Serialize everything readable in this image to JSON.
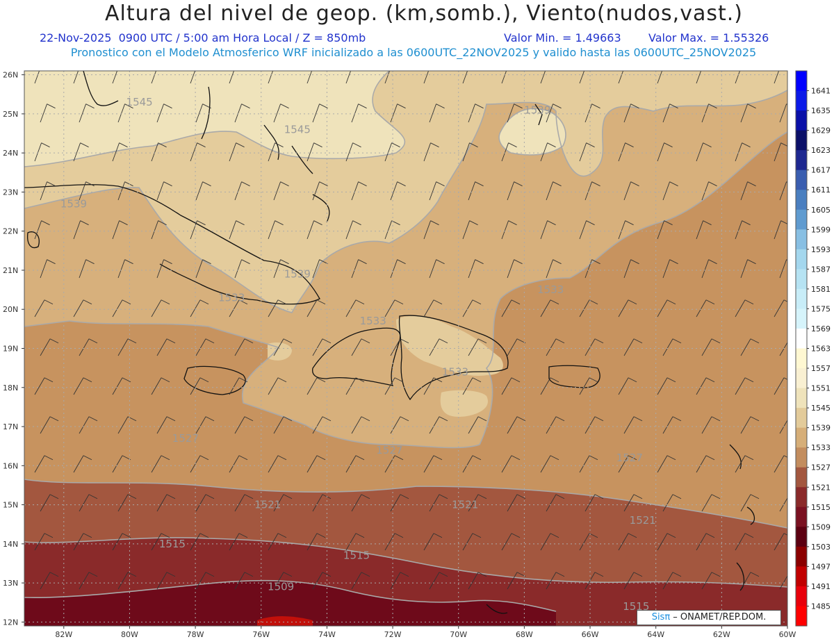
{
  "header": {
    "title": "Altura del nivel de geop. (km,somb.), Viento(nudos,vast.)",
    "date_time": "22-Nov-2025  0900 UTC / 5:00 am Hora Local / Z = 850mb",
    "min_value": "Valor Min. = 1.49663",
    "max_value": "Valor Max. = 1.55326",
    "model_info": "Pronostico con el Modelo Atmosferico WRF inicializado a las 0600UTC_22NOV2025 y valido hasta las  0600UTC_25NOV2025"
  },
  "axes": {
    "lat_labels": [
      "26N",
      "25N",
      "24N",
      "23N",
      "22N",
      "21N",
      "20N",
      "19N",
      "18N",
      "17N",
      "16N",
      "15N",
      "14N",
      "13N",
      "12N"
    ],
    "lon_labels": [
      "82W",
      "80W",
      "78W",
      "76W",
      "74W",
      "72W",
      "70W",
      "68W",
      "66W",
      "64W",
      "62W",
      "60W"
    ]
  },
  "contour_labels": [
    {
      "text": "1545",
      "lon": -79.7,
      "lat": 25.3
    },
    {
      "text": "1545",
      "lon": -74.9,
      "lat": 24.6
    },
    {
      "text": "1539",
      "lon": -67.6,
      "lat": 25.1
    },
    {
      "text": "1539",
      "lon": -81.7,
      "lat": 22.7
    },
    {
      "text": "1539",
      "lon": -74.9,
      "lat": 20.9
    },
    {
      "text": "1533",
      "lon": -76.9,
      "lat": 20.3
    },
    {
      "text": "1533",
      "lon": -72.6,
      "lat": 19.7
    },
    {
      "text": "1533",
      "lon": -70.1,
      "lat": 18.4
    },
    {
      "text": "1533",
      "lon": -67.2,
      "lat": 20.5
    },
    {
      "text": "1527",
      "lon": -78.3,
      "lat": 16.7
    },
    {
      "text": "1527",
      "lon": -72.1,
      "lat": 16.4
    },
    {
      "text": "1527",
      "lon": -64.8,
      "lat": 16.2
    },
    {
      "text": "1521",
      "lon": -75.8,
      "lat": 15.0
    },
    {
      "text": "1521",
      "lon": -69.8,
      "lat": 15.0
    },
    {
      "text": "1521",
      "lon": -64.4,
      "lat": 14.6
    },
    {
      "text": "1515",
      "lon": -78.7,
      "lat": 14.0
    },
    {
      "text": "1515",
      "lon": -73.1,
      "lat": 13.7
    },
    {
      "text": "1515",
      "lon": -64.6,
      "lat": 12.4
    },
    {
      "text": "1509",
      "lon": -75.4,
      "lat": 12.9
    }
  ],
  "colorbar": {
    "levels": [
      "1641",
      "1635",
      "1629",
      "1623",
      "1617",
      "1611",
      "1605",
      "1599",
      "1593",
      "1587",
      "1581",
      "1575",
      "1569",
      "1563",
      "1557",
      "1551",
      "1545",
      "1539",
      "1533",
      "1527",
      "1521",
      "1515",
      "1509",
      "1503",
      "1497",
      "1491",
      "1485"
    ],
    "colors": [
      "#0000ff",
      "#0b1ae8",
      "#0a10a8",
      "#0b1068",
      "#1e2890",
      "#3a5eb0",
      "#4a7fc0",
      "#5f9bd0",
      "#88bfe3",
      "#a4d7ee",
      "#b6e3f3",
      "#c8edf8",
      "#d6f4fb",
      "#ffffff",
      "#fff8d2",
      "#f9f0d2",
      "#efe3bb",
      "#e3cb9a",
      "#d6ae78",
      "#c38d5e",
      "#a3573f",
      "#8a2a2a",
      "#7a1121",
      "#5c0011",
      "#8b0000",
      "#c10000",
      "#e8000b",
      "#ff0000"
    ]
  },
  "credit": {
    "brand": "Sisπ",
    "text": " – ONAMET/REP.DOM."
  }
}
